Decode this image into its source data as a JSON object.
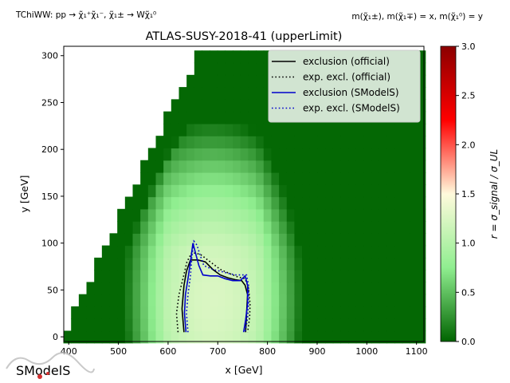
{
  "header": {
    "left": "TChiWW: pp → χ̃₁⁺χ̃₁⁻, χ̃₁± → Wχ̃₁⁰",
    "right": "m(χ̃₁±), m(χ̃₁∓) = x, m(χ̃₁⁰) = y"
  },
  "logo": {
    "text": "SModelS"
  },
  "chart_data": {
    "type": "heatmap",
    "title": "ATLAS-SUSY-2018-41 (upperLimit)",
    "xlabel": "x [GeV]",
    "ylabel": "y [GeV]",
    "xlim": [
      390,
      1115
    ],
    "ylim": [
      -5,
      310
    ],
    "xticks": [
      "400",
      "500",
      "600",
      "700",
      "800",
      "900",
      "1000",
      "1100"
    ],
    "yticks": [
      "0",
      "50",
      "100",
      "150",
      "200",
      "250",
      "300"
    ],
    "colorbar": {
      "label": "r = σ_signal / σ_UL",
      "range": [
        0.0,
        3.0
      ],
      "ticks": [
        "0.0",
        "0.5",
        "1.0",
        "1.5",
        "2.0",
        "2.5",
        "3.0"
      ],
      "colors": [
        "#006400",
        "#90ee90",
        "#fffadc",
        "#ff0000",
        "#8b0000"
      ]
    },
    "legend": {
      "placement": "top-right",
      "entries": [
        {
          "label": "exclusion (official)",
          "color": "#000000",
          "style": "solid"
        },
        {
          "label": "exp. excl. (official)",
          "color": "#000000",
          "style": "dotted"
        },
        {
          "label": "exclusion (SModelS)",
          "color": "#0000cc",
          "style": "solid"
        },
        {
          "label": "exp. excl. (SModelS)",
          "color": "#0000cc",
          "style": "dotted"
        }
      ]
    },
    "contours": [
      {
        "name": "exclusion (official)",
        "color": "#000000",
        "style": "solid",
        "points": [
          [
            632,
            5
          ],
          [
            628,
            30
          ],
          [
            632,
            55
          ],
          [
            637,
            70
          ],
          [
            645,
            82
          ],
          [
            660,
            82
          ],
          [
            675,
            80
          ],
          [
            690,
            72
          ],
          [
            705,
            66
          ],
          [
            720,
            63
          ],
          [
            735,
            61
          ],
          [
            748,
            60
          ],
          [
            755,
            55
          ],
          [
            760,
            45
          ],
          [
            758,
            25
          ],
          [
            756,
            5
          ]
        ]
      },
      {
        "name": "exp. excl. (official)",
        "color": "#000000",
        "style": "dotted",
        "points": [
          [
            620,
            5
          ],
          [
            617,
            25
          ],
          [
            622,
            45
          ],
          [
            630,
            62
          ],
          [
            638,
            80
          ],
          [
            648,
            90
          ],
          [
            665,
            88
          ],
          [
            685,
            80
          ],
          [
            705,
            72
          ],
          [
            722,
            68
          ],
          [
            740,
            64
          ],
          [
            755,
            62
          ],
          [
            762,
            52
          ],
          [
            765,
            35
          ],
          [
            764,
            20
          ],
          [
            760,
            5
          ]
        ]
      },
      {
        "name": "exclusion (SModelS)",
        "color": "#0000cc",
        "style": "solid",
        "points": [
          [
            636,
            5
          ],
          [
            633,
            25
          ],
          [
            635,
            45
          ],
          [
            640,
            62
          ],
          [
            645,
            80
          ],
          [
            650,
            100
          ],
          [
            656,
            88
          ],
          [
            662,
            76
          ],
          [
            670,
            66
          ],
          [
            685,
            65
          ],
          [
            700,
            65
          ],
          [
            715,
            62
          ],
          [
            730,
            60
          ],
          [
            745,
            60
          ],
          [
            755,
            65
          ],
          [
            760,
            55
          ],
          [
            760,
            35
          ],
          [
            756,
            18
          ],
          [
            752,
            5
          ]
        ]
      },
      {
        "name": "exp. excl. (SModelS)",
        "color": "#0000cc",
        "style": "dotted",
        "points": [
          [
            640,
            5
          ],
          [
            637,
            25
          ],
          [
            640,
            45
          ],
          [
            645,
            65
          ],
          [
            648,
            85
          ],
          [
            652,
            102
          ],
          [
            658,
            98
          ],
          [
            664,
            88
          ],
          [
            672,
            76
          ],
          [
            690,
            72
          ],
          [
            705,
            70
          ],
          [
            720,
            68
          ],
          [
            735,
            66
          ],
          [
            750,
            66
          ],
          [
            758,
            66
          ],
          [
            762,
            55
          ],
          [
            762,
            35
          ],
          [
            760,
            20
          ],
          [
            755,
            5
          ]
        ]
      }
    ]
  }
}
